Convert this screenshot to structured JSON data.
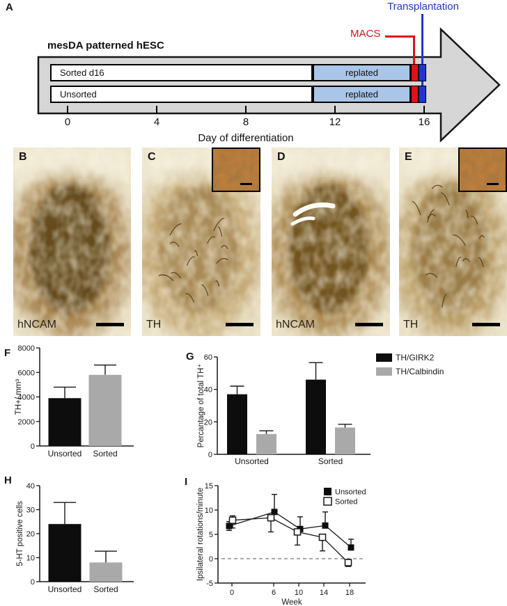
{
  "panel_a": {
    "letter": "A",
    "transplantation_label": "Transplantation",
    "macs_label": "MACS",
    "title": "mesDA patterned hESC",
    "bars": [
      {
        "label": "Sorted d16",
        "replated": "replated"
      },
      {
        "label": "Unsorted",
        "replated": "replated"
      }
    ],
    "axis_ticks": [
      "0",
      "4",
      "8",
      "12",
      "16"
    ],
    "axis_label": "Day of differentiation",
    "colors": {
      "red": "#e01018",
      "blue": "#2136cc",
      "blue_text": "#2438c8",
      "red_text": "#d6151c",
      "replated_fill": "#a9c5e8",
      "arrow_fill": "#d6d6d6"
    }
  },
  "micrographs": [
    {
      "letter": "B",
      "stain": "hNCAM"
    },
    {
      "letter": "C",
      "stain": "TH"
    },
    {
      "letter": "D",
      "stain": "hNCAM"
    },
    {
      "letter": "E",
      "stain": "TH"
    }
  ],
  "chart_data": [
    {
      "id": "F",
      "panel_label": "F",
      "type": "bar",
      "ylabel": "TH+/ mm³",
      "ylim": [
        0,
        8000
      ],
      "yticks": [
        0,
        2000,
        4000,
        6000,
        8000
      ],
      "categories": [
        "Unsorted",
        "Sorted"
      ],
      "values": [
        3900,
        5800
      ],
      "errors": [
        900,
        800
      ],
      "bar_colors": [
        "#0d0d0d",
        "#a9a9a9"
      ]
    },
    {
      "id": "G",
      "panel_label": "G",
      "type": "grouped_bar",
      "ylabel": "Percantage of total TH⁺",
      "ylim": [
        0,
        60
      ],
      "yticks": [
        0,
        20,
        40,
        60
      ],
      "categories": [
        "Unsorted",
        "Sorted"
      ],
      "series": [
        {
          "name": "TH/GIRK2",
          "color": "#0d0d0d",
          "values": [
            37,
            46
          ],
          "errors": [
            5,
            10.5
          ]
        },
        {
          "name": "TH/Calbindin",
          "color": "#a9a9a9",
          "values": [
            12.5,
            16.5
          ],
          "errors": [
            2,
            2
          ]
        }
      ],
      "legend_position": "right"
    },
    {
      "id": "H",
      "panel_label": "H",
      "type": "bar",
      "ylabel": "5-HT positive cells",
      "ylim": [
        0,
        40
      ],
      "yticks": [
        0,
        10,
        20,
        30,
        40
      ],
      "categories": [
        "Unsorted",
        "Sorted"
      ],
      "values": [
        24,
        8
      ],
      "errors": [
        9,
        4.7
      ],
      "bar_colors": [
        "#0d0d0d",
        "#a9a9a9"
      ]
    },
    {
      "id": "I",
      "panel_label": "I",
      "type": "line",
      "ylabel": "Ipsilateral rotations/minute",
      "xlabel": "Week",
      "ylim": [
        -5,
        15
      ],
      "yticks": [
        -5,
        0,
        5,
        10,
        15
      ],
      "x": [
        0,
        6,
        10,
        14,
        18
      ],
      "zero_line_dashed": true,
      "series": [
        {
          "name": "Unsorted",
          "marker": "filled-square",
          "values": [
            6.7,
            9.6,
            6.1,
            6.8,
            2.3
          ],
          "err_up": [
            0.9,
            3.6,
            2.5,
            2.8,
            1.7
          ],
          "err_down": [
            0.9,
            0,
            0,
            0,
            0
          ]
        },
        {
          "name": "Sorted",
          "marker": "open-square",
          "values": [
            7.9,
            8.4,
            5.5,
            4.4,
            -0.8
          ],
          "err_up": [
            0.9,
            0,
            0,
            0,
            0.4
          ],
          "err_down": [
            1.6,
            2.9,
            2.7,
            2.8,
            0.8
          ]
        }
      ]
    }
  ]
}
